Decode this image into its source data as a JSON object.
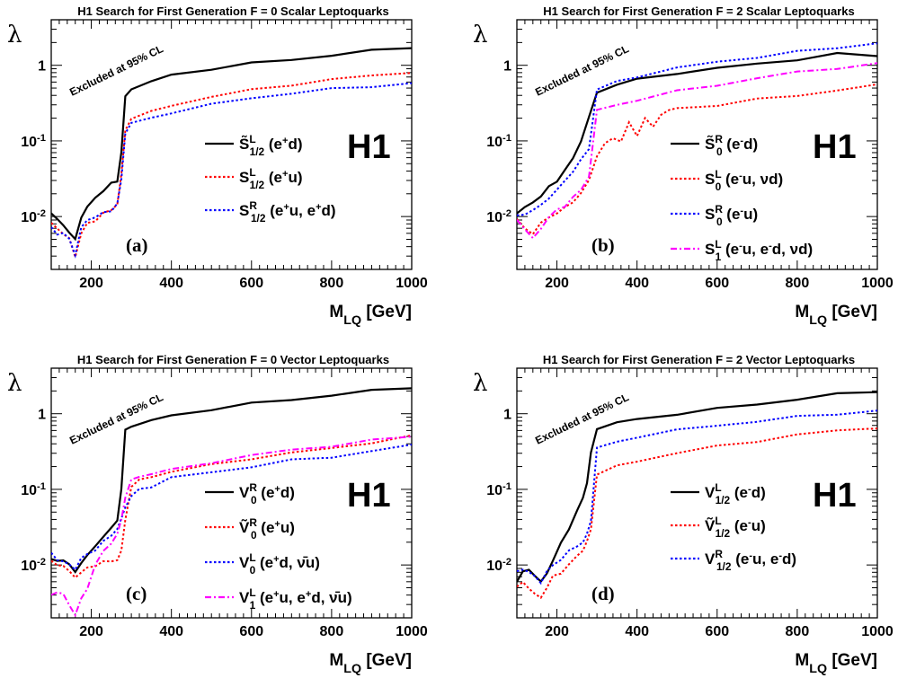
{
  "chart_data": [
    {
      "type": "line",
      "title": "H1 Search for First Generation F = 0 Scalar Leptoquarks",
      "ylabel": "λ",
      "xlabel": "M_LQ [GeV]",
      "xlim": [
        100,
        1000
      ],
      "ylim": [
        0.002,
        4
      ],
      "yscale": "log",
      "xticks": [
        "200",
        "400",
        "600",
        "800",
        "1000"
      ],
      "yticks": [
        "10^-2",
        "10^-1",
        "1"
      ],
      "experiment": "H1",
      "panel": "(a)",
      "annotation": "Excluded at 95% CL",
      "series": [
        {
          "name": "S̃^L_1/2 (e+d)",
          "color": "#000000",
          "dash": "solid",
          "x": [
            100,
            115,
            130,
            145,
            160,
            175,
            190,
            210,
            230,
            250,
            265,
            275,
            285,
            300,
            350,
            400,
            500,
            600,
            700,
            800,
            900,
            1000
          ],
          "y": [
            0.011,
            0.009,
            0.008,
            0.006,
            0.005,
            0.01,
            0.013,
            0.018,
            0.022,
            0.027,
            0.03,
            0.07,
            0.38,
            0.5,
            0.6,
            0.75,
            0.9,
            1.05,
            1.2,
            1.35,
            1.55,
            1.75
          ]
        },
        {
          "name": "S^L_1/2 (e+u)",
          "color": "#ff0000",
          "dash": "dot",
          "x": [
            100,
            115,
            130,
            145,
            160,
            175,
            190,
            210,
            230,
            250,
            265,
            275,
            285,
            300,
            350,
            400,
            500,
            600,
            700,
            800,
            900,
            1000
          ],
          "y": [
            0.008,
            0.007,
            0.006,
            0.005,
            0.003,
            0.006,
            0.008,
            0.009,
            0.011,
            0.012,
            0.015,
            0.035,
            0.14,
            0.2,
            0.24,
            0.3,
            0.38,
            0.47,
            0.56,
            0.64,
            0.73,
            0.82
          ]
        },
        {
          "name": "S^R_1/2 (e+u, e+d)",
          "color": "#0000ff",
          "dash": "dot",
          "x": [
            100,
            115,
            130,
            145,
            160,
            175,
            190,
            210,
            230,
            250,
            265,
            275,
            285,
            300,
            350,
            400,
            500,
            600,
            700,
            800,
            900,
            1000
          ],
          "y": [
            0.007,
            0.006,
            0.006,
            0.005,
            0.0032,
            0.007,
            0.009,
            0.01,
            0.011,
            0.012,
            0.015,
            0.03,
            0.13,
            0.17,
            0.2,
            0.24,
            0.3,
            0.37,
            0.43,
            0.48,
            0.53,
            0.58
          ]
        }
      ]
    },
    {
      "type": "line",
      "title": "H1 Search for First Generation F = 2 Scalar Leptoquarks",
      "ylabel": "λ",
      "xlabel": "M_LQ [GeV]",
      "xlim": [
        100,
        1000
      ],
      "ylim": [
        0.002,
        4
      ],
      "yscale": "log",
      "xticks": [
        "200",
        "400",
        "600",
        "800",
        "1000"
      ],
      "yticks": [
        "10^-2",
        "10^-1",
        "1"
      ],
      "experiment": "H1",
      "panel": "(b)",
      "annotation": "Excluded at 95% CL",
      "series": [
        {
          "name": "S̃^R_0 (e-d)",
          "color": "#000000",
          "dash": "solid",
          "x": [
            100,
            120,
            140,
            160,
            180,
            200,
            220,
            240,
            260,
            280,
            300,
            350,
            400,
            500,
            600,
            700,
            800,
            900,
            1000
          ],
          "y": [
            0.011,
            0.013,
            0.016,
            0.018,
            0.025,
            0.03,
            0.04,
            0.06,
            0.1,
            0.2,
            0.45,
            0.55,
            0.65,
            0.8,
            0.9,
            1.05,
            1.2,
            1.4,
            1.35
          ]
        },
        {
          "name": "S^L_0 (e-u, νd)",
          "color": "#ff0000",
          "dash": "dot",
          "x": [
            100,
            120,
            140,
            160,
            180,
            200,
            220,
            240,
            260,
            280,
            300,
            320,
            340,
            360,
            380,
            400,
            420,
            440,
            460,
            480,
            500,
            600,
            700,
            800,
            900,
            1000
          ],
          "y": [
            0.009,
            0.007,
            0.006,
            0.008,
            0.01,
            0.011,
            0.013,
            0.016,
            0.02,
            0.03,
            0.065,
            0.09,
            0.11,
            0.1,
            0.17,
            0.12,
            0.2,
            0.15,
            0.23,
            0.25,
            0.27,
            0.3,
            0.35,
            0.4,
            0.47,
            0.54
          ]
        },
        {
          "name": "S^R_0 (e-u)",
          "color": "#0000ff",
          "dash": "dot",
          "x": [
            100,
            120,
            140,
            160,
            180,
            200,
            220,
            240,
            260,
            280,
            300,
            350,
            400,
            500,
            600,
            700,
            800,
            900,
            1000
          ],
          "y": [
            0.01,
            0.011,
            0.012,
            0.014,
            0.018,
            0.022,
            0.03,
            0.04,
            0.055,
            0.08,
            0.48,
            0.6,
            0.72,
            0.92,
            1.1,
            1.3,
            1.5,
            1.7,
            2.0
          ]
        },
        {
          "name": "S^L_1 (e-u, e-d, νd)",
          "color": "#ff00ff",
          "dash": "dashdot",
          "x": [
            100,
            120,
            140,
            160,
            180,
            200,
            220,
            240,
            260,
            280,
            300,
            350,
            400,
            500,
            600,
            700,
            800,
            900,
            1000
          ],
          "y": [
            0.009,
            0.007,
            0.005,
            0.007,
            0.01,
            0.012,
            0.014,
            0.018,
            0.022,
            0.035,
            0.25,
            0.3,
            0.35,
            0.45,
            0.55,
            0.68,
            0.8,
            0.93,
            1.05
          ]
        }
      ]
    },
    {
      "type": "line",
      "title": "H1 Search for First Generation F = 0 Vector Leptoquarks",
      "ylabel": "λ",
      "xlabel": "M_LQ [GeV]",
      "xlim": [
        100,
        1000
      ],
      "ylim": [
        0.002,
        4
      ],
      "yscale": "log",
      "xticks": [
        "200",
        "400",
        "600",
        "800",
        "1000"
      ],
      "yticks": [
        "10^-2",
        "10^-1",
        "1"
      ],
      "experiment": "H1",
      "panel": "(c)",
      "annotation": "Excluded at 95% CL",
      "series": [
        {
          "name": "V^R_0 (e+d)",
          "color": "#000000",
          "dash": "solid",
          "x": [
            100,
            115,
            130,
            145,
            160,
            175,
            190,
            210,
            230,
            250,
            265,
            275,
            285,
            300,
            350,
            400,
            500,
            600,
            700,
            800,
            900,
            1000
          ],
          "y": [
            0.012,
            0.011,
            0.012,
            0.01,
            0.008,
            0.011,
            0.013,
            0.018,
            0.024,
            0.03,
            0.04,
            0.1,
            0.6,
            0.7,
            0.8,
            0.95,
            1.15,
            1.35,
            1.55,
            1.75,
            2.0,
            2.25
          ]
        },
        {
          "name": "Ṽ^R_0 (e+u)",
          "color": "#ff0000",
          "dash": "dot",
          "x": [
            100,
            115,
            130,
            145,
            160,
            175,
            190,
            210,
            230,
            250,
            265,
            275,
            285,
            300,
            320,
            350,
            400,
            500,
            600,
            700,
            800,
            900,
            1000
          ],
          "y": [
            0.011,
            0.01,
            0.01,
            0.008,
            0.007,
            0.008,
            0.009,
            0.01,
            0.011,
            0.011,
            0.012,
            0.015,
            0.04,
            0.11,
            0.13,
            0.15,
            0.17,
            0.21,
            0.26,
            0.3,
            0.35,
            0.42,
            0.5
          ]
        },
        {
          "name": "V^L_0 (e+d, ν̄u)",
          "color": "#0000ff",
          "dash": "dot",
          "x": [
            100,
            115,
            130,
            145,
            160,
            175,
            190,
            210,
            230,
            250,
            265,
            275,
            285,
            300,
            320,
            350,
            400,
            500,
            600,
            700,
            800,
            900,
            1000
          ],
          "y": [
            0.014,
            0.012,
            0.011,
            0.01,
            0.009,
            0.012,
            0.014,
            0.016,
            0.02,
            0.025,
            0.03,
            0.04,
            0.06,
            0.08,
            0.1,
            0.11,
            0.14,
            0.17,
            0.2,
            0.24,
            0.27,
            0.32,
            0.38
          ]
        },
        {
          "name": "V^L_1 (e+u, e+d, ν̄u)",
          "color": "#ff00ff",
          "dash": "dashdot",
          "x": [
            100,
            115,
            130,
            145,
            160,
            175,
            190,
            210,
            230,
            250,
            265,
            275,
            285,
            300,
            320,
            350,
            400,
            500,
            600,
            700,
            800,
            900,
            1000
          ],
          "y": [
            0.004,
            0.0045,
            0.004,
            0.003,
            0.0022,
            0.0035,
            0.005,
            0.01,
            0.015,
            0.02,
            0.025,
            0.04,
            0.08,
            0.13,
            0.15,
            0.16,
            0.18,
            0.23,
            0.28,
            0.33,
            0.38,
            0.44,
            0.5
          ]
        }
      ]
    },
    {
      "type": "line",
      "title": "H1 Search for First Generation F = 2 Vector Leptoquarks",
      "ylabel": "λ",
      "xlabel": "M_LQ [GeV]",
      "xlim": [
        100,
        1000
      ],
      "ylim": [
        0.002,
        4
      ],
      "yscale": "log",
      "xticks": [
        "200",
        "400",
        "600",
        "800",
        "1000"
      ],
      "yticks": [
        "10^-2",
        "10^-1",
        "1"
      ],
      "experiment": "H1",
      "panel": "(d)",
      "annotation": "Excluded at 95% CL",
      "series": [
        {
          "name": "V^L_1/2 (e-d)",
          "color": "#000000",
          "dash": "solid",
          "x": [
            100,
            115,
            130,
            145,
            160,
            175,
            190,
            210,
            230,
            250,
            265,
            275,
            285,
            300,
            350,
            400,
            500,
            600,
            700,
            800,
            900,
            1000
          ],
          "y": [
            0.006,
            0.008,
            0.009,
            0.007,
            0.006,
            0.008,
            0.011,
            0.02,
            0.03,
            0.05,
            0.08,
            0.12,
            0.3,
            0.65,
            0.75,
            0.85,
            1.0,
            1.15,
            1.35,
            1.55,
            1.8,
            2.0
          ]
        },
        {
          "name": "Ṽ^L_1/2 (e-u)",
          "color": "#ff0000",
          "dash": "dot",
          "x": [
            100,
            115,
            130,
            145,
            160,
            175,
            190,
            210,
            230,
            250,
            265,
            275,
            285,
            300,
            350,
            400,
            500,
            600,
            700,
            800,
            900,
            1000
          ],
          "y": [
            0.005,
            0.006,
            0.005,
            0.004,
            0.0038,
            0.005,
            0.007,
            0.008,
            0.01,
            0.013,
            0.016,
            0.02,
            0.03,
            0.16,
            0.2,
            0.24,
            0.3,
            0.37,
            0.44,
            0.52,
            0.6,
            0.66
          ]
        },
        {
          "name": "V^R_1/2 (e-u, e-d)",
          "color": "#0000ff",
          "dash": "dot",
          "x": [
            100,
            115,
            130,
            145,
            160,
            175,
            190,
            210,
            230,
            250,
            265,
            275,
            285,
            300,
            350,
            400,
            500,
            600,
            700,
            800,
            900,
            1000
          ],
          "y": [
            0.008,
            0.009,
            0.008,
            0.007,
            0.006,
            0.008,
            0.01,
            0.012,
            0.015,
            0.018,
            0.02,
            0.025,
            0.04,
            0.35,
            0.42,
            0.5,
            0.6,
            0.7,
            0.8,
            0.9,
            1.0,
            1.1
          ]
        }
      ]
    }
  ]
}
